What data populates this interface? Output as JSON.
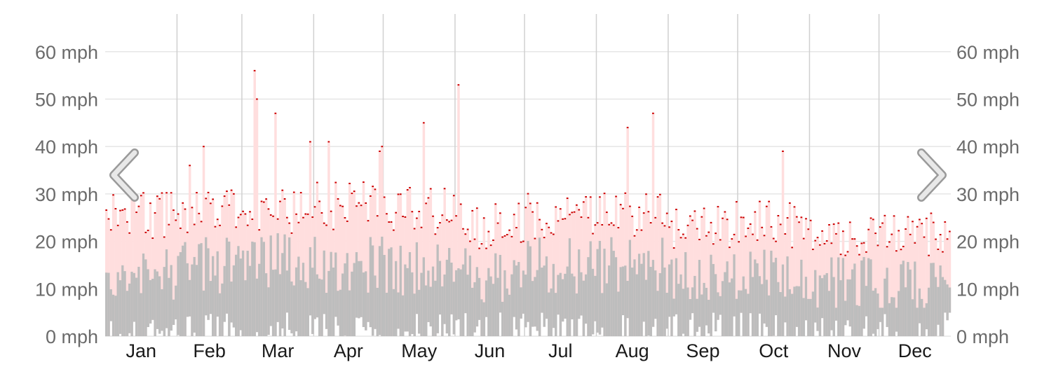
{
  "chart_data": {
    "type": "bar",
    "title": "",
    "xlabel": "",
    "ylabel": "",
    "unit": "mph",
    "ylim": [
      0,
      66
    ],
    "grid": true,
    "y_ticks": [
      0,
      10,
      20,
      30,
      40,
      50,
      60
    ],
    "y_tick_labels": [
      "0 mph",
      "10 mph",
      "20 mph",
      "30 mph",
      "40 mph",
      "50 mph",
      "60 mph"
    ],
    "month_labels": [
      "Jan",
      "Feb",
      "Mar",
      "Apr",
      "May",
      "Jun",
      "Jul",
      "Aug",
      "Sep",
      "Oct",
      "Nov",
      "Dec"
    ],
    "month_days": [
      31,
      28,
      31,
      30,
      31,
      30,
      31,
      31,
      30,
      31,
      30,
      31
    ],
    "series": [
      {
        "key": "avg_daily",
        "color": "#bdbdbd",
        "monthly_typical": [
          13,
          15,
          16,
          15,
          14,
          13,
          15,
          15,
          13,
          13,
          11,
          10
        ]
      },
      {
        "key": "max_daily_gust",
        "color": "#ffdede",
        "marker_color": "#cc0000",
        "monthly_typical": [
          25,
          26,
          26,
          27,
          26,
          23,
          25,
          25,
          23,
          23,
          21,
          21
        ],
        "notable_peaks": [
          {
            "day": 36,
            "value": 36
          },
          {
            "day": 42,
            "value": 40
          },
          {
            "day": 64,
            "value": 56
          },
          {
            "day": 65,
            "value": 50
          },
          {
            "day": 73,
            "value": 47
          },
          {
            "day": 88,
            "value": 41
          },
          {
            "day": 96,
            "value": 41
          },
          {
            "day": 118,
            "value": 39
          },
          {
            "day": 119,
            "value": 40
          },
          {
            "day": 137,
            "value": 45
          },
          {
            "day": 152,
            "value": 53
          },
          {
            "day": 225,
            "value": 44
          },
          {
            "day": 236,
            "value": 47
          },
          {
            "day": 292,
            "value": 39
          }
        ]
      }
    ],
    "year_days": 365,
    "seed": 20240611
  },
  "nav": {
    "prev_icon": "chevron-left-icon",
    "next_icon": "chevron-right-icon"
  },
  "colors": {
    "grid": "#e6e6e6",
    "month_line": "#d0d0d0",
    "chevron": "#c4c4c4"
  }
}
